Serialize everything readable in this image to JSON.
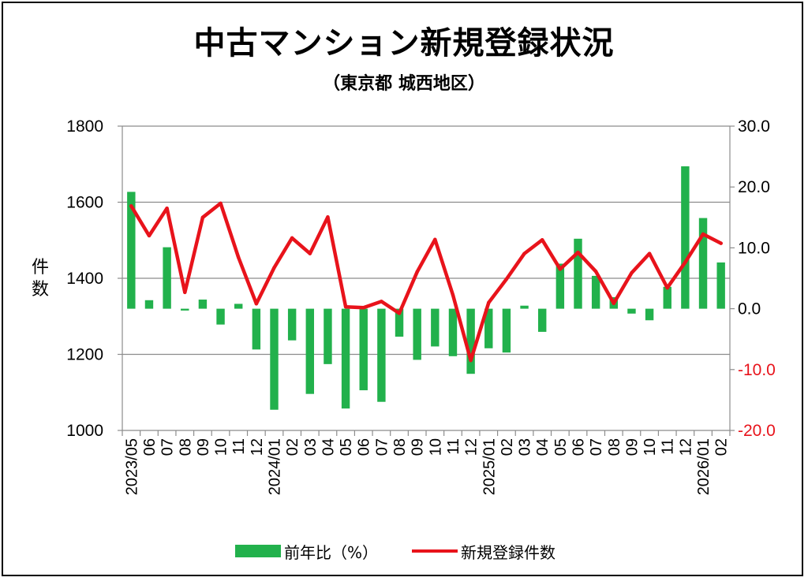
{
  "chart_data": {
    "type": "bar+line",
    "title": "中古マンション新規登録状況",
    "subtitle": "（東京都 城西地区）",
    "ylabel": "件数",
    "y_left": {
      "min": 1000,
      "max": 1800,
      "ticks": [
        "1800",
        "1600",
        "1400",
        "1200",
        "1000"
      ]
    },
    "y_right": {
      "min": -20,
      "max": 30,
      "ticks": [
        {
          "label": "30.0",
          "color": "#000000"
        },
        {
          "label": "20.0",
          "color": "#000000"
        },
        {
          "label": "10.0",
          "color": "#000000"
        },
        {
          "label": "0.0",
          "color": "#000000"
        },
        {
          "label": "-10.0",
          "color": "#e8131b"
        },
        {
          "label": "-20.0",
          "color": "#e8131b"
        }
      ]
    },
    "categories": [
      "2023/05",
      "06",
      "07",
      "08",
      "09",
      "10",
      "11",
      "12",
      "2024/01",
      "02",
      "03",
      "04",
      "05",
      "06",
      "07",
      "08",
      "09",
      "10",
      "11",
      "12",
      "2025/01",
      "02",
      "03",
      "04",
      "05",
      "06",
      "07",
      "08",
      "09",
      "10",
      "11",
      "12",
      "2026/01",
      "02"
    ],
    "series": [
      {
        "name": "前年比(%)",
        "type": "bar",
        "axis": "right",
        "color": "#22b14c",
        "values": [
          19.2,
          1.4,
          10.1,
          -0.3,
          1.5,
          -2.6,
          0.8,
          -6.7,
          -16.6,
          -5.2,
          -14.0,
          -9.1,
          -16.4,
          -13.4,
          -15.3,
          -4.6,
          -8.4,
          -6.2,
          -7.8,
          -10.7,
          -6.5,
          -7.2,
          0.5,
          -3.8,
          7.4,
          11.5,
          5.4,
          1.9,
          -0.8,
          -1.9,
          3.6,
          23.4,
          14.9,
          7.6
        ]
      },
      {
        "name": "新規登録件数",
        "type": "line",
        "axis": "left",
        "color": "#e8131b",
        "values": [
          1590,
          1512,
          1584,
          1363,
          1560,
          1597,
          1455,
          1333,
          1428,
          1506,
          1465,
          1561,
          1325,
          1323,
          1339,
          1308,
          1417,
          1502,
          1356,
          1184,
          1336,
          1398,
          1465,
          1501,
          1424,
          1468,
          1418,
          1334,
          1414,
          1465,
          1375,
          1442,
          1516,
          1492
        ]
      }
    ],
    "legend_labels": {
      "bar": "前年比（%）",
      "line": "新規登録件数"
    },
    "grid": "horizontal",
    "legend_position": "bottom"
  }
}
